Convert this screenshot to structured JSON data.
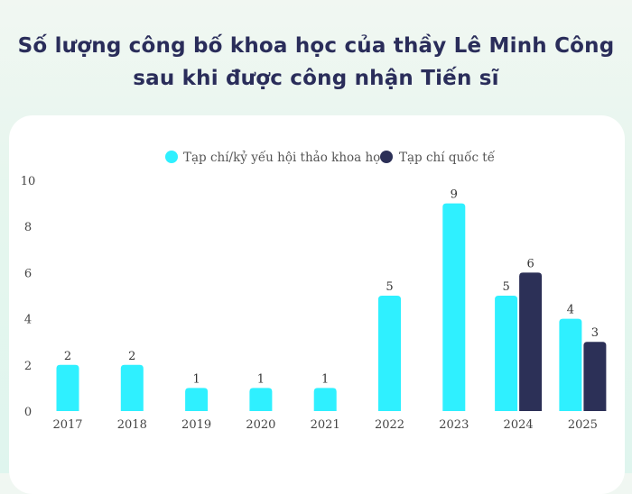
{
  "title_line1": "Số lượng công bố khoa học của thầy Lê Minh Công",
  "title_line2": "sau khi được công nhận Tiến sĩ",
  "colors": {
    "title": "#2a2d5a",
    "series1": "#2ff0ff",
    "series2": "#2c3057",
    "text": "#333333"
  },
  "chart_data": {
    "type": "bar",
    "categories": [
      "2017",
      "2018",
      "2019",
      "2020",
      "2021",
      "2022",
      "2023",
      "2024",
      "2025"
    ],
    "series": [
      {
        "name": "Tạp chí/kỷ yếu hội thảo khoa học",
        "color": "#2ff0ff",
        "values": [
          2,
          2,
          1,
          1,
          1,
          5,
          9,
          5,
          4
        ]
      },
      {
        "name": "Tạp chí quốc tế",
        "color": "#2c3057",
        "values": [
          null,
          null,
          null,
          null,
          null,
          null,
          null,
          6,
          3
        ]
      }
    ],
    "ylim": [
      0,
      10
    ],
    "yticks": [
      0,
      2,
      4,
      6,
      8,
      10
    ],
    "grid": false,
    "legend_position": "top"
  }
}
